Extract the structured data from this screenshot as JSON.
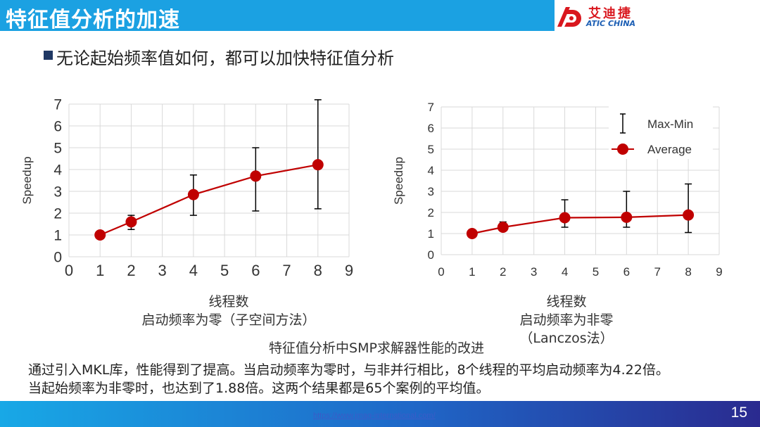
{
  "header": {
    "title": "特征值分析的加速",
    "logo_cn": "艾迪捷",
    "logo_en": "ATIC CHINA"
  },
  "subtitle": "无论起始频率值如何，都可以加快特征值分析",
  "chart_data": [
    {
      "type": "line",
      "x": [
        1,
        2,
        4,
        6,
        8
      ],
      "series": [
        {
          "name": "Average",
          "values": [
            1.0,
            1.6,
            2.85,
            3.7,
            4.22
          ]
        },
        {
          "name": "Max-Min",
          "low": [
            1.0,
            1.25,
            1.9,
            2.1,
            2.2
          ],
          "high": [
            1.0,
            1.9,
            3.75,
            5.0,
            7.2
          ]
        }
      ],
      "xlabel": "",
      "ylabel": "Speedup",
      "xlim": [
        0,
        9
      ],
      "ylim": [
        0,
        7
      ],
      "xticks": [
        "0",
        "1",
        "2",
        "3",
        "4",
        "5",
        "6",
        "7",
        "8",
        "9"
      ],
      "yticks": [
        "0",
        "1",
        "2",
        "3",
        "4",
        "5",
        "6",
        "7"
      ],
      "grid": true,
      "color": "#c00000"
    },
    {
      "type": "line",
      "x": [
        1,
        2,
        4,
        6,
        8
      ],
      "series": [
        {
          "name": "Average",
          "values": [
            1.0,
            1.3,
            1.75,
            1.77,
            1.88
          ]
        },
        {
          "name": "Max-Min",
          "low": [
            1.0,
            1.15,
            1.3,
            1.3,
            1.05
          ],
          "high": [
            1.0,
            1.55,
            2.6,
            3.0,
            3.35
          ]
        }
      ],
      "xlabel": "",
      "ylabel": "Speedup",
      "xlim": [
        0,
        9
      ],
      "ylim": [
        0,
        7
      ],
      "xticks": [
        "0",
        "1",
        "2",
        "3",
        "4",
        "5",
        "6",
        "7",
        "8",
        "9"
      ],
      "yticks": [
        "0",
        "1",
        "2",
        "3",
        "4",
        "5",
        "6",
        "7"
      ],
      "grid": true,
      "legend": {
        "placement": "top-right",
        "items": [
          "Max-Min",
          "Average"
        ]
      },
      "color": "#c00000"
    }
  ],
  "captions": {
    "left_line1": "线程数",
    "left_line2": "启动频率为零（子空间方法）",
    "right_line1": "线程数",
    "right_line2": "启动频率为非零",
    "right_line3": "（Lanczos法）",
    "figure_title": "特征值分析中SMP求解器性能的改进"
  },
  "body": {
    "line1": "通过引入MKL库，性能得到了提高。当启动频率为零时，与非并行相比，8个线程的平均启动频率为4.22倍。",
    "line2": "当起始频率为非零时，也达到了1.88倍。这两个结果都是65个案例的平均值。"
  },
  "footer": {
    "url": "https://www.jmag-international.com/",
    "page": "15"
  }
}
